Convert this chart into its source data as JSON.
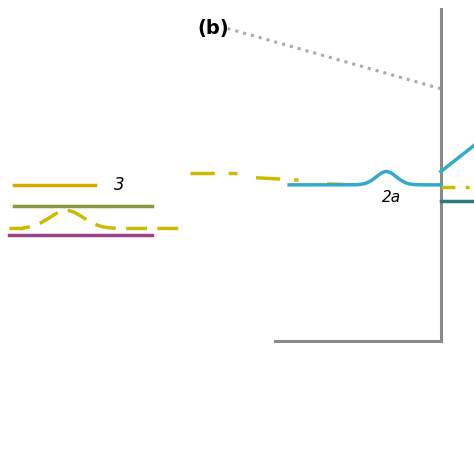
{
  "title": "(b)",
  "title_fontsize": 14,
  "title_fontstyle": "bold",
  "bg_color": "#ffffff",
  "colors": {
    "gray_dotted": "#aaaaaa",
    "gray_solid": "#8a8a8a",
    "yellow_solid": "#d4aa00",
    "olive_green": "#8a9a40",
    "yellow_dashed": "#ccbb00",
    "purple": "#994488",
    "blue": "#33aacc",
    "teal": "#2a7a7a"
  }
}
